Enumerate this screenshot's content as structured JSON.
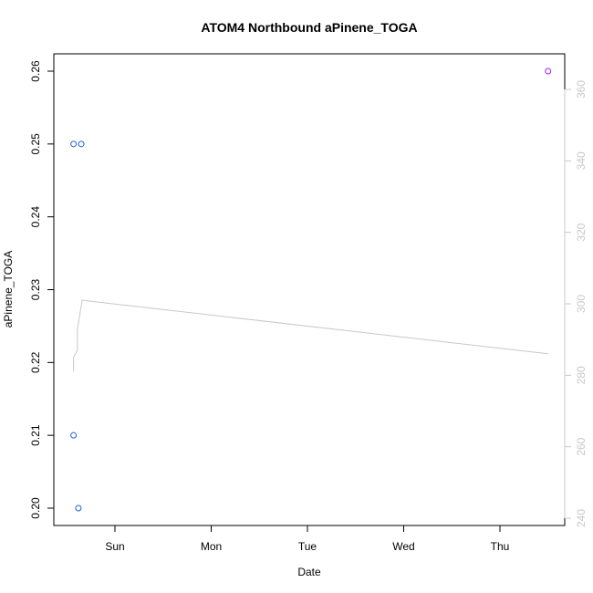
{
  "chart_data": {
    "type": "scatter",
    "title": "ATOM4 Northbound aPinene_TOGA",
    "xlabel": "Date",
    "ylabel": "aPinene_TOGA",
    "x_tick_labels": [
      "Sun",
      "Mon",
      "Tue",
      "Wed",
      "Thu"
    ],
    "y_ticks": [
      0.2,
      0.21,
      0.22,
      0.23,
      0.24,
      0.25,
      0.26
    ],
    "y_tick_labels": [
      "0.20",
      "0.21",
      "0.22",
      "0.23",
      "0.24",
      "0.25",
      "0.26"
    ],
    "ylim": [
      0.2,
      0.26
    ],
    "y2_ticks": [
      240,
      260,
      280,
      300,
      320,
      340,
      360
    ],
    "y2_tick_labels": [
      "240",
      "260",
      "280",
      "300",
      "320",
      "340",
      "360"
    ],
    "y2lim": [
      240,
      360
    ],
    "xlim_days": [
      -0.62,
      4.03
    ],
    "points": [
      {
        "x_day": -0.43,
        "y": 0.25,
        "color": "#1f5fd6"
      },
      {
        "x_day": -0.35,
        "y": 0.25,
        "color": "#1f5fd6"
      },
      {
        "x_day": -0.43,
        "y": 0.21,
        "color": "#1f5fd6"
      },
      {
        "x_day": -0.38,
        "y": 0.2,
        "color": "#1f5fd6"
      },
      {
        "x_day": 4.5,
        "y": 0.26,
        "color": "#a020f0"
      }
    ],
    "secondary_line": {
      "color": "#c8c8c8",
      "x_day": [
        -0.43,
        -0.43,
        -0.39,
        -0.39,
        -0.34,
        4.5
      ],
      "y2": [
        281,
        285,
        287,
        293,
        301,
        286
      ]
    },
    "grid": false,
    "legend": "none"
  }
}
